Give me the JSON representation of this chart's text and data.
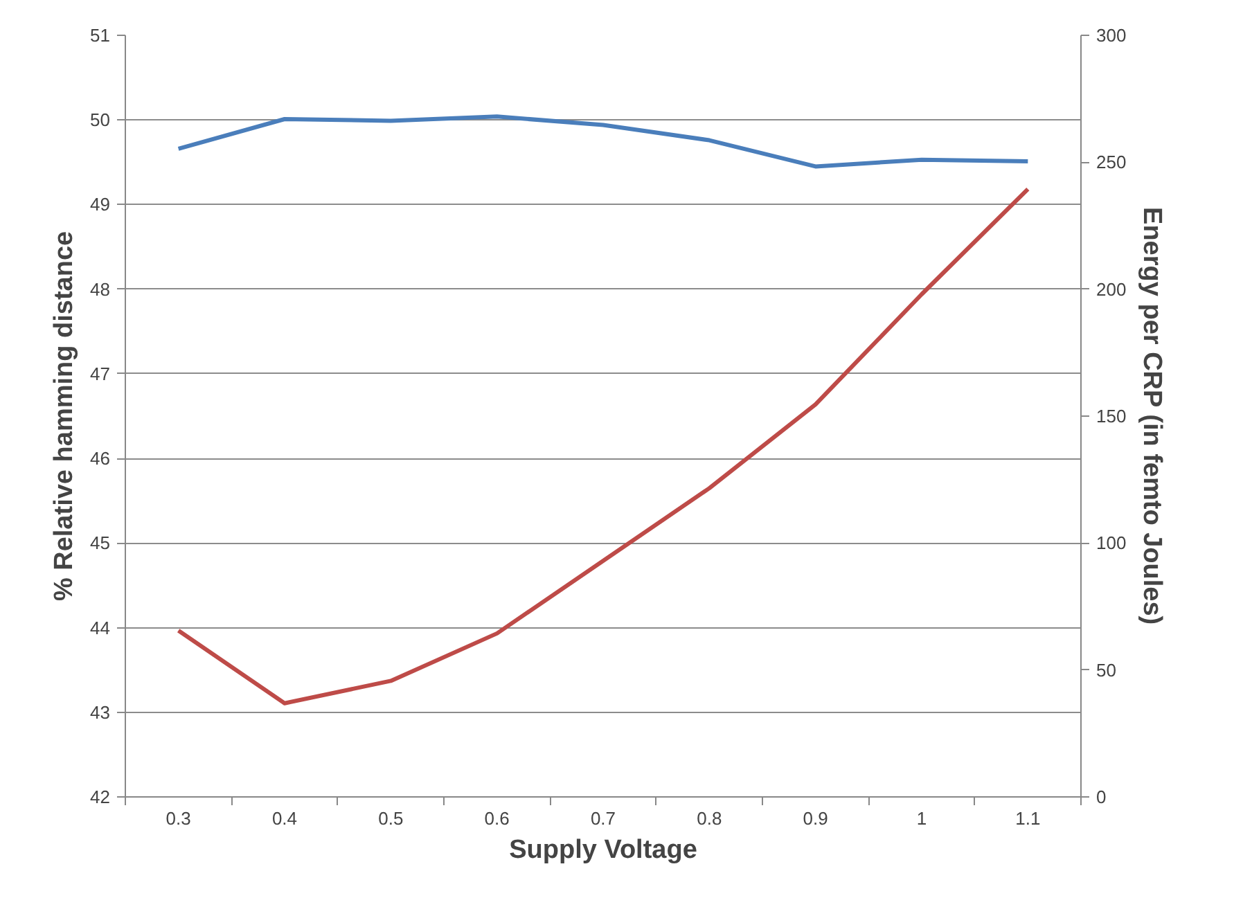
{
  "chart_data": {
    "type": "line",
    "xlabel": "Supply Voltage",
    "ylabel": "% Relative hamming distance",
    "y2label": "Energy per CRP (in femto Joules)",
    "categories": [
      "0.3",
      "0.4",
      "0.5",
      "0.6",
      "0.7",
      "0.8",
      "0.9",
      "1",
      "1.1"
    ],
    "series": [
      {
        "color": "#4a7ebb",
        "values": [
          49.66,
          50.01,
          49.99,
          50.04,
          49.94,
          49.76,
          49.45,
          49.53,
          49.51
        ]
      },
      {
        "color": "#be4b48",
        "axis": "y2",
        "values": [
          65.5,
          36.9,
          45.7,
          64.4,
          93,
          121.6,
          154.6,
          198,
          239.4
        ]
      }
    ],
    "ylim": [
      42,
      51
    ],
    "yticks": [
      42,
      43,
      44,
      45,
      46,
      47,
      48,
      49,
      50,
      51
    ],
    "y2lim": [
      0,
      300
    ],
    "y2ticks": [
      0,
      50,
      100,
      150,
      200,
      250,
      300
    ],
    "grid": "y"
  }
}
